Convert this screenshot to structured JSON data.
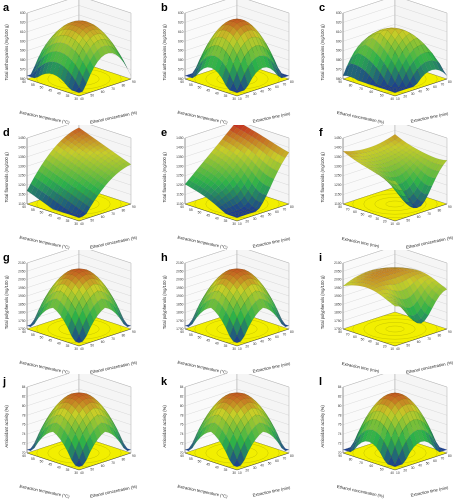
{
  "chart_data": [
    {
      "panel": "a",
      "type": "surface3d",
      "zlabel": "Total anthocyanins (mg/100 g)",
      "xlabel": "Ethanol concentration (%)",
      "ylabel": "Extraction temperature (°C)",
      "surface": "dome-flat",
      "zticks": [
        "560",
        "570",
        "580",
        "590",
        "600",
        "610",
        "620",
        "630"
      ],
      "xticks": [
        "40",
        "50",
        "60",
        "70",
        "80",
        "90"
      ],
      "yticks": [
        "30",
        "35",
        "40",
        "45",
        "50",
        "55",
        "60"
      ]
    },
    {
      "panel": "b",
      "type": "surface3d",
      "zlabel": "Total anthocyanins (mg/100 g)",
      "xlabel": "Extraction time (min)",
      "ylabel": "Extraction temperature (°C)",
      "surface": "dome",
      "zticks": [
        "560",
        "570",
        "580",
        "590",
        "600",
        "610",
        "620",
        "630"
      ],
      "xticks": [
        "10",
        "20",
        "30",
        "40",
        "50",
        "60",
        "70",
        "80"
      ],
      "yticks": [
        "30",
        "35",
        "40",
        "45",
        "50",
        "55",
        "60"
      ]
    },
    {
      "panel": "c",
      "type": "surface3d",
      "zlabel": "Total anthocyanins (mg/100 g)",
      "xlabel": "Extraction time (min)",
      "ylabel": "Ethanol concentration (%)",
      "surface": "dome-low",
      "zticks": [
        "560",
        "570",
        "580",
        "590",
        "600",
        "610",
        "620",
        "630"
      ],
      "xticks": [
        "10",
        "20",
        "30",
        "40",
        "50",
        "60",
        "70",
        "80"
      ],
      "yticks": [
        "40",
        "50",
        "60",
        "70",
        "80",
        "90"
      ]
    },
    {
      "panel": "d",
      "type": "surface3d",
      "zlabel": "Total flavonoids (mg/100 g)",
      "xlabel": "Ethanol concentration (%)",
      "ylabel": "Extraction temperature (°C)",
      "surface": "ramp",
      "zticks": [
        "1100",
        "1150",
        "1200",
        "1250",
        "1300",
        "1350",
        "1400",
        "1450"
      ],
      "xticks": [
        "40",
        "50",
        "60",
        "70",
        "80",
        "90"
      ],
      "yticks": [
        "30",
        "35",
        "40",
        "45",
        "50",
        "55",
        "60"
      ]
    },
    {
      "panel": "e",
      "type": "surface3d",
      "zlabel": "Total flavonoids (mg/100 g)",
      "xlabel": "Extraction time (min)",
      "ylabel": "Extraction temperature (°C)",
      "surface": "ramp-dip",
      "zticks": [
        "1100",
        "1150",
        "1200",
        "1250",
        "1300",
        "1350",
        "1400",
        "1450"
      ],
      "xticks": [
        "10",
        "20",
        "30",
        "40",
        "50",
        "60",
        "70",
        "80"
      ],
      "yticks": [
        "30",
        "35",
        "40",
        "45",
        "50",
        "55",
        "60"
      ]
    },
    {
      "panel": "f",
      "type": "surface3d",
      "zlabel": "Total flavonoids (mg/100 g)",
      "xlabel": "Ethanol concentration (%)",
      "ylabel": "Extraction time (min)",
      "surface": "saddle",
      "zticks": [
        "1100",
        "1150",
        "1200",
        "1250",
        "1300",
        "1350",
        "1400",
        "1450"
      ],
      "xticks": [
        "40",
        "50",
        "60",
        "70",
        "80",
        "90"
      ],
      "yticks": [
        "10",
        "20",
        "30",
        "40",
        "50",
        "60",
        "70",
        "80"
      ]
    },
    {
      "panel": "g",
      "type": "surface3d",
      "zlabel": "Total polyphenols (mg/100 g)",
      "xlabel": "Ethanol concentration (%)",
      "ylabel": "Extraction temperature (°C)",
      "surface": "peak",
      "zticks": [
        "1700",
        "1750",
        "1800",
        "1850",
        "1900",
        "1950",
        "2000",
        "2050",
        "2100"
      ],
      "xticks": [
        "40",
        "50",
        "60",
        "70",
        "80",
        "90"
      ],
      "yticks": [
        "30",
        "35",
        "40",
        "45",
        "50",
        "55",
        "60"
      ]
    },
    {
      "panel": "h",
      "type": "surface3d",
      "zlabel": "Total polyphenols (mg/100 g)",
      "xlabel": "Extraction time (min)",
      "ylabel": "Extraction temperature (°C)",
      "surface": "peak",
      "zticks": [
        "1700",
        "1750",
        "1800",
        "1850",
        "1900",
        "1950",
        "2000",
        "2050",
        "2100"
      ],
      "xticks": [
        "10",
        "20",
        "30",
        "40",
        "50",
        "60",
        "70",
        "80"
      ],
      "yticks": [
        "30",
        "35",
        "40",
        "45",
        "50",
        "55",
        "60"
      ]
    },
    {
      "panel": "i",
      "type": "surface3d",
      "zlabel": "Total polyphenols (mg/100 g)",
      "xlabel": "Ethanol concentration (%)",
      "ylabel": "Extraction time (min)",
      "surface": "saddle-high",
      "zticks": [
        "1700",
        "1750",
        "1800",
        "1850",
        "1900",
        "1950",
        "2000",
        "2050",
        "2100"
      ],
      "xticks": [
        "40",
        "50",
        "60",
        "70",
        "80",
        "90"
      ],
      "yticks": [
        "10",
        "20",
        "30",
        "40",
        "50",
        "60",
        "70",
        "80"
      ]
    },
    {
      "panel": "j",
      "type": "surface3d",
      "zlabel": "Antioxidant activity (%)",
      "xlabel": "Ethanol concentration (%)",
      "ylabel": "Extraction temperature (°C)",
      "surface": "peak",
      "zticks": [
        "70",
        "72",
        "74",
        "76",
        "78",
        "80",
        "82",
        "84"
      ],
      "xticks": [
        "40",
        "50",
        "60",
        "70",
        "80",
        "90"
      ],
      "yticks": [
        "30",
        "35",
        "40",
        "45",
        "50",
        "55",
        "60"
      ]
    },
    {
      "panel": "k",
      "type": "surface3d",
      "zlabel": "Antioxidant activity (%)",
      "xlabel": "Extraction time (min)",
      "ylabel": "Extraction temperature (°C)",
      "surface": "peak",
      "zticks": [
        "70",
        "72",
        "74",
        "76",
        "78",
        "80",
        "82",
        "84"
      ],
      "xticks": [
        "10",
        "20",
        "30",
        "40",
        "50",
        "60",
        "70",
        "80"
      ],
      "yticks": [
        "30",
        "35",
        "40",
        "45",
        "50",
        "55",
        "60"
      ]
    },
    {
      "panel": "l",
      "type": "surface3d",
      "zlabel": "Antioxidant activity (%)",
      "xlabel": "Extraction time (min)",
      "ylabel": "Ethanol concentration (%)",
      "surface": "dome",
      "zticks": [
        "70",
        "72",
        "74",
        "76",
        "78",
        "80",
        "82",
        "84"
      ],
      "xticks": [
        "10",
        "20",
        "30",
        "40",
        "50",
        "60",
        "70",
        "80"
      ],
      "yticks": [
        "40",
        "50",
        "60",
        "70",
        "80",
        "90"
      ]
    }
  ],
  "colors": {
    "floor": "#f2ef00",
    "floor_contour": "#a8a600",
    "low": "#1a2a9c",
    "mid": "#2bb14a",
    "high": "#c41e1e",
    "axis": "#333333"
  }
}
